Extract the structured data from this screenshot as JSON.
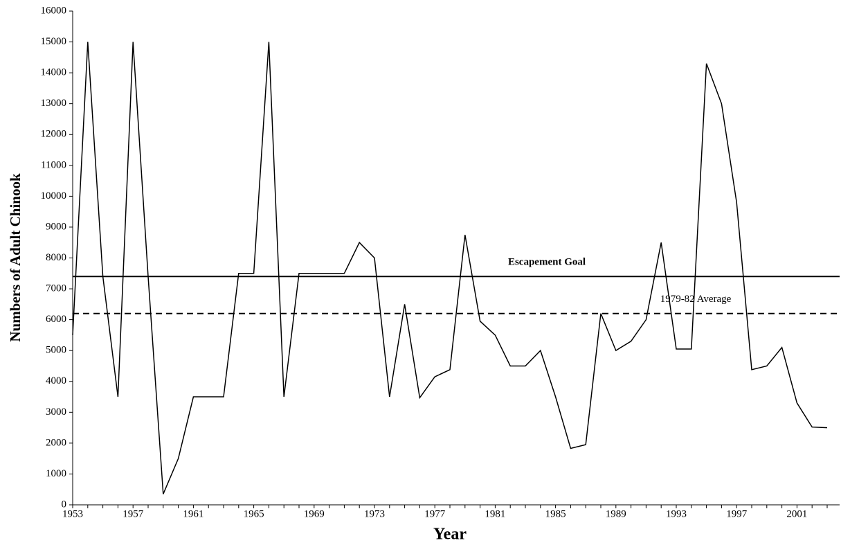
{
  "chart_data": {
    "type": "line",
    "x_label": "Year",
    "y_label": "Numbers of Adult Chinook",
    "x": [
      1953,
      1954,
      1955,
      1956,
      1957,
      1958,
      1959,
      1960,
      1961,
      1962,
      1963,
      1964,
      1965,
      1966,
      1967,
      1968,
      1969,
      1970,
      1971,
      1972,
      1973,
      1974,
      1975,
      1976,
      1977,
      1978,
      1979,
      1980,
      1981,
      1982,
      1983,
      1984,
      1985,
      1986,
      1987,
      1988,
      1989,
      1990,
      1991,
      1992,
      1993,
      1994,
      1995,
      1996,
      1997,
      1998,
      1999,
      2000,
      2001,
      2002,
      2003
    ],
    "series": [
      {
        "color": "#000000",
        "values": [
          5500,
          15000,
          7400,
          3500,
          15000,
          7400,
          350,
          1500,
          3500,
          3500,
          3500,
          7500,
          7500,
          15000,
          3500,
          7500,
          7500,
          7500,
          7500,
          8500,
          8000,
          3500,
          6500,
          3470,
          4150,
          4380,
          8750,
          5950,
          5500,
          4500,
          4500,
          5000,
          3500,
          1830,
          1950,
          6200,
          5000,
          5300,
          6000,
          8500,
          5050,
          5050,
          14300,
          13000,
          9800,
          4380,
          4500,
          5100,
          3300,
          2520,
          2500
        ]
      }
    ],
    "reference_lines": [
      {
        "label": "Escapement Goal",
        "value": 7400,
        "style": "solid"
      },
      {
        "label": "1979-82 Average",
        "value": 6200,
        "style": "dashed"
      }
    ],
    "xlim": [
      1953,
      2003
    ],
    "xticks": [
      1953,
      1957,
      1961,
      1965,
      1969,
      1973,
      1977,
      1981,
      1985,
      1989,
      1993,
      1997,
      2001
    ],
    "ylim": [
      0,
      16000
    ],
    "yticks": [
      0,
      1000,
      2000,
      3000,
      4000,
      5000,
      6000,
      7000,
      8000,
      9000,
      10000,
      11000,
      12000,
      13000,
      14000,
      15000,
      16000
    ]
  }
}
